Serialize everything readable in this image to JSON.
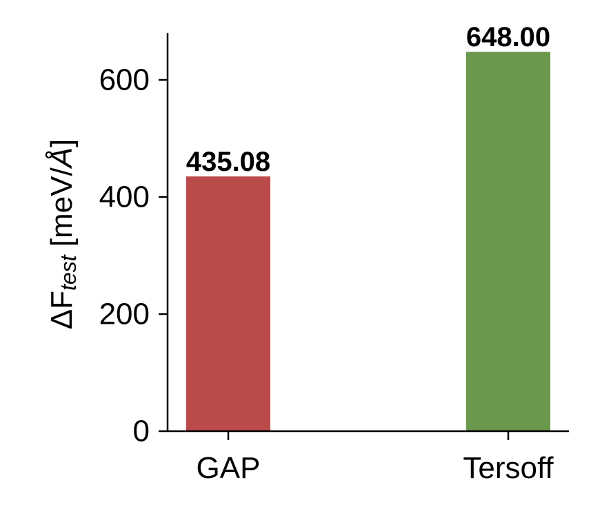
{
  "chart_data": {
    "type": "bar",
    "categories": [
      "GAP",
      "Tersoff"
    ],
    "values": [
      435.08,
      648.0
    ],
    "data_labels": [
      "435.08",
      "648.00"
    ],
    "colors": [
      "#bb4a4a",
      "#6a994e"
    ],
    "ylabel": {
      "prefix": "ΔF",
      "subscript": "test",
      "suffix_open": " [meV/",
      "unit": "Å",
      "suffix_close": "]"
    },
    "ylim": [
      0,
      680
    ],
    "yticks": [
      0,
      200,
      400,
      600
    ],
    "ytick_labels": [
      "0",
      "200",
      "400",
      "600"
    ],
    "grid": false,
    "legend": "none"
  }
}
